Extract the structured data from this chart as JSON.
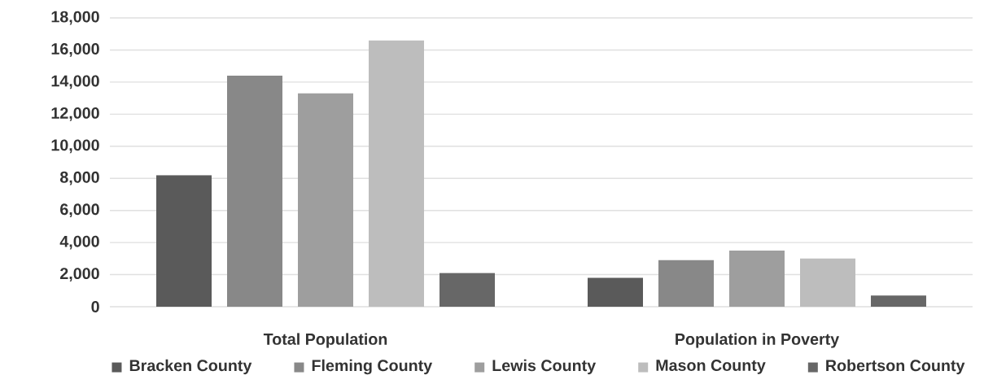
{
  "chart_data": {
    "type": "bar",
    "categories": [
      "Total Population",
      "Population in Poverty"
    ],
    "series": [
      {
        "name": "Bracken County",
        "color": "#5a5a5a",
        "values": [
          8200,
          1800
        ]
      },
      {
        "name": "Fleming County",
        "color": "#888888",
        "values": [
          14400,
          2900
        ]
      },
      {
        "name": "Lewis County",
        "color": "#9e9e9e",
        "values": [
          13300,
          3500
        ]
      },
      {
        "name": "Mason County",
        "color": "#bdbdbd",
        "values": [
          16600,
          3000
        ]
      },
      {
        "name": "Robertson County",
        "color": "#676767",
        "values": [
          2100,
          700
        ]
      }
    ],
    "ylim": [
      0,
      18000
    ],
    "yticks": [
      0,
      {
        "value": 2000,
        "label": "2,000"
      },
      {
        "value": 4000,
        "label": "4,000"
      },
      {
        "value": 6000,
        "label": "6,000"
      },
      {
        "value": 8000,
        "label": "8,000"
      },
      {
        "value": 10000,
        "label": "10,000"
      },
      {
        "value": 12000,
        "label": "12,000"
      },
      {
        "value": 14000,
        "label": "14,000"
      },
      {
        "value": 16000,
        "label": "16,000"
      },
      {
        "value": 18000,
        "label": "18,000"
      }
    ],
    "grid": "y",
    "legend": "bottom"
  }
}
